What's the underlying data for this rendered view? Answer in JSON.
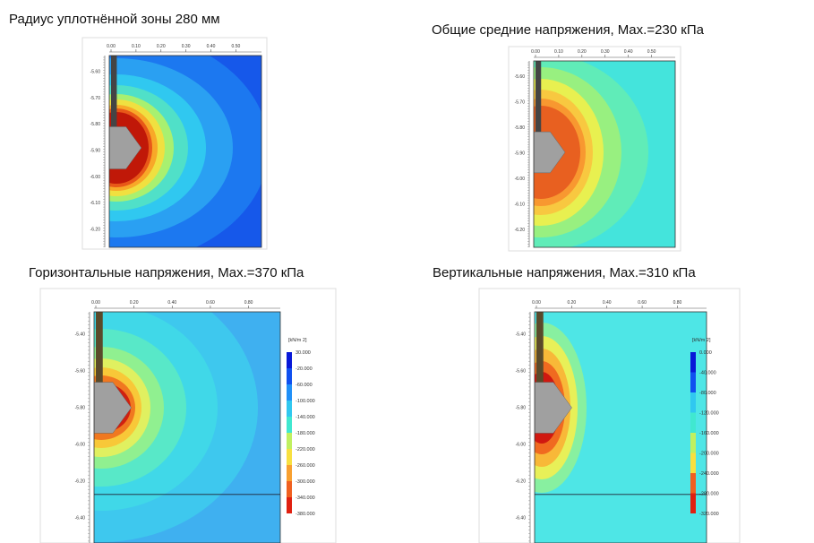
{
  "panels": [
    {
      "title": "Радиус уплотнённой зоны 280 мм",
      "xticks": [
        "0.00",
        "0.10",
        "0.20",
        "0.30",
        "0.40",
        "0.50"
      ],
      "yticks": [
        "-5.60",
        "-5.70",
        "-5.80",
        "-5.90",
        "-6.00",
        "-6.10",
        "-6.20"
      ]
    },
    {
      "title": "Общие средние напряжения, Max.=230 кПа",
      "xticks": [
        "0.00",
        "0.10",
        "0.20",
        "0.30",
        "0.40",
        "0.50"
      ],
      "yticks": [
        "-5.60",
        "-5.70",
        "-5.80",
        "-5.90",
        "-6.00",
        "-6.10",
        "-6.20"
      ]
    },
    {
      "title": "Горизонтальные напряжения, Max.=370 кПа",
      "xticks": [
        "0.00",
        "0.20",
        "0.40",
        "0.60",
        "0.80"
      ],
      "yticks": [
        "-5.40",
        "-5.60",
        "-5.80",
        "-6.00",
        "-6.20",
        "-6.40"
      ],
      "colorbar": {
        "unit": "[kN/m 2]",
        "labels": [
          "30.000",
          "-20.000",
          "-60.000",
          "-100.000",
          "-140.000",
          "-180.000",
          "-220.000",
          "-260.000",
          "-300.000",
          "-340.000",
          "-380.000"
        ]
      }
    },
    {
      "title": "Вертикальные напряжения, Max.=310 кПа",
      "xticks": [
        "0.00",
        "0.20",
        "0.40",
        "0.60",
        "0.80"
      ],
      "yticks": [
        "-5.40",
        "-5.60",
        "-5.80",
        "-6.00",
        "-6.20",
        "-6.40"
      ],
      "colorbar": {
        "unit": "[kN/m 2]",
        "labels": [
          "0.000",
          "-40.000",
          "-80.000",
          "-120.000",
          "-160.000",
          "-200.000",
          "-240.000",
          "-280.000",
          "-320.000"
        ]
      }
    }
  ]
}
